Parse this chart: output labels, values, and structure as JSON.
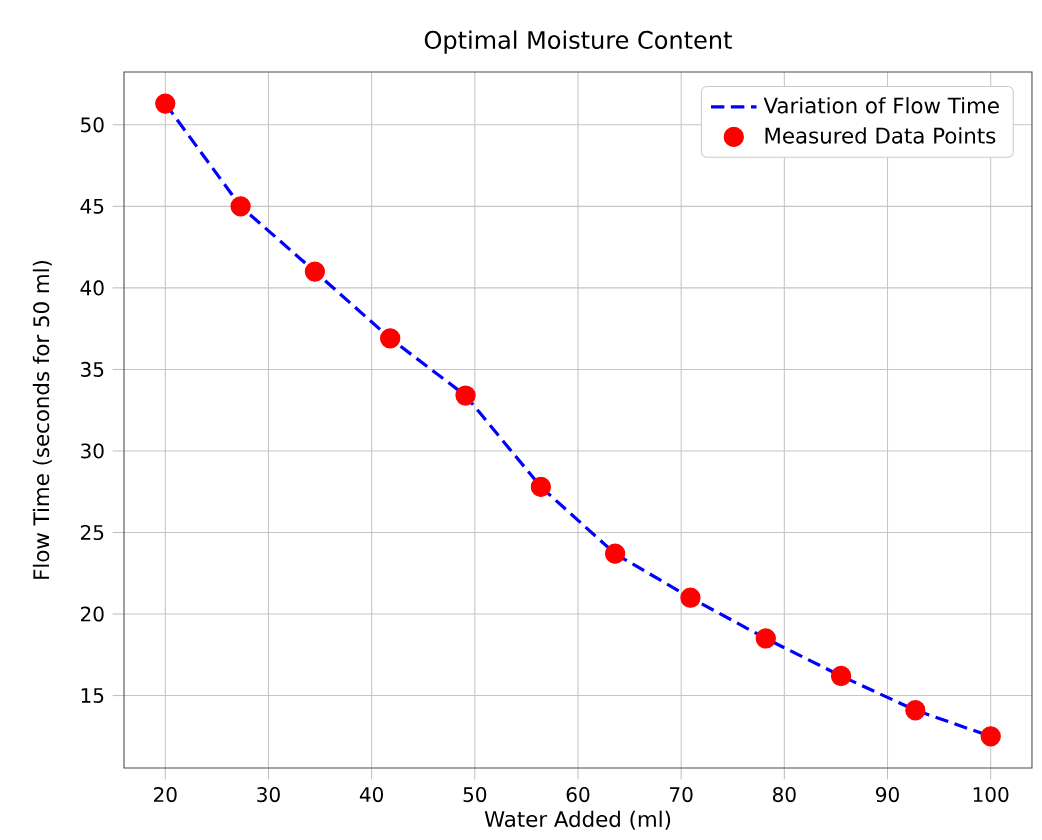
{
  "chart_data": {
    "type": "line",
    "title": "Optimal Moisture Content",
    "xlabel": "Water Added (ml)",
    "ylabel": "Flow Time (seconds for 50 ml)",
    "x": [
      20,
      27.3,
      34.5,
      41.8,
      49.1,
      56.4,
      63.6,
      70.9,
      78.2,
      85.5,
      92.7,
      100
    ],
    "series": [
      {
        "name": "Variation of Flow Time",
        "type": "line",
        "color": "#0000ff",
        "line_style": "dashed",
        "marker": "none",
        "values": [
          51.3,
          45,
          41,
          36.9,
          33.4,
          27.8,
          23.7,
          21.0,
          18.5,
          16.2,
          14.1,
          12.5
        ]
      },
      {
        "name": "Measured Data Points",
        "type": "scatter",
        "color": "#ff0000",
        "marker": "circle",
        "values": [
          51.3,
          45,
          41,
          36.9,
          33.4,
          27.8,
          23.7,
          21.0,
          18.5,
          16.2,
          14.1,
          12.5
        ]
      }
    ],
    "xlim": [
      16,
      104
    ],
    "ylim": [
      10.56,
      53.24
    ],
    "xticks": [
      20,
      30,
      40,
      50,
      60,
      70,
      80,
      90,
      100
    ],
    "yticks": [
      15,
      20,
      25,
      30,
      35,
      40,
      45,
      50
    ],
    "grid": true,
    "legend": "top right"
  }
}
